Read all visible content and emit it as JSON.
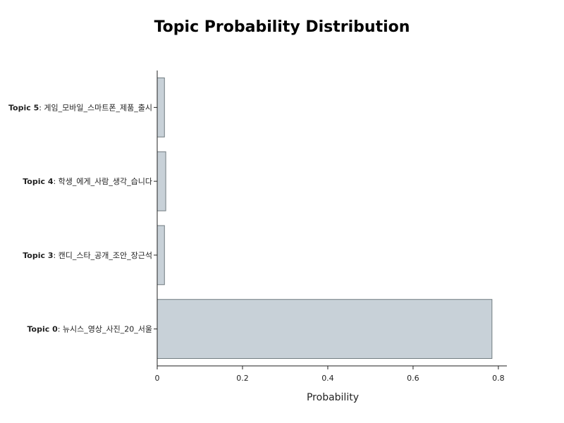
{
  "chart_data": {
    "type": "bar",
    "orientation": "horizontal",
    "title": "Topic Probability Distribution",
    "xlabel": "Probability",
    "ylabel": "",
    "xlim": [
      0,
      0.82
    ],
    "x_ticks": [
      0,
      0.2,
      0.4,
      0.6,
      0.8
    ],
    "x_tick_labels": [
      "0",
      "0.2",
      "0.4",
      "0.6",
      "0.8"
    ],
    "grid": false,
    "categories": [
      {
        "topic": "Topic 0",
        "words": "뉴시스_영상_사진_20_서울"
      },
      {
        "topic": "Topic 3",
        "words": "캔디_스타_공개_조안_장근석"
      },
      {
        "topic": "Topic 4",
        "words": "학생_에게_사람_생각_습니다"
      },
      {
        "topic": "Topic 5",
        "words": "게임_모바일_스마트폰_제품_출시"
      }
    ],
    "values": [
      0.785,
      0.017,
      0.02,
      0.017
    ],
    "bar_color": "#c8d1d8",
    "bar_edge_color": "#707b80"
  }
}
